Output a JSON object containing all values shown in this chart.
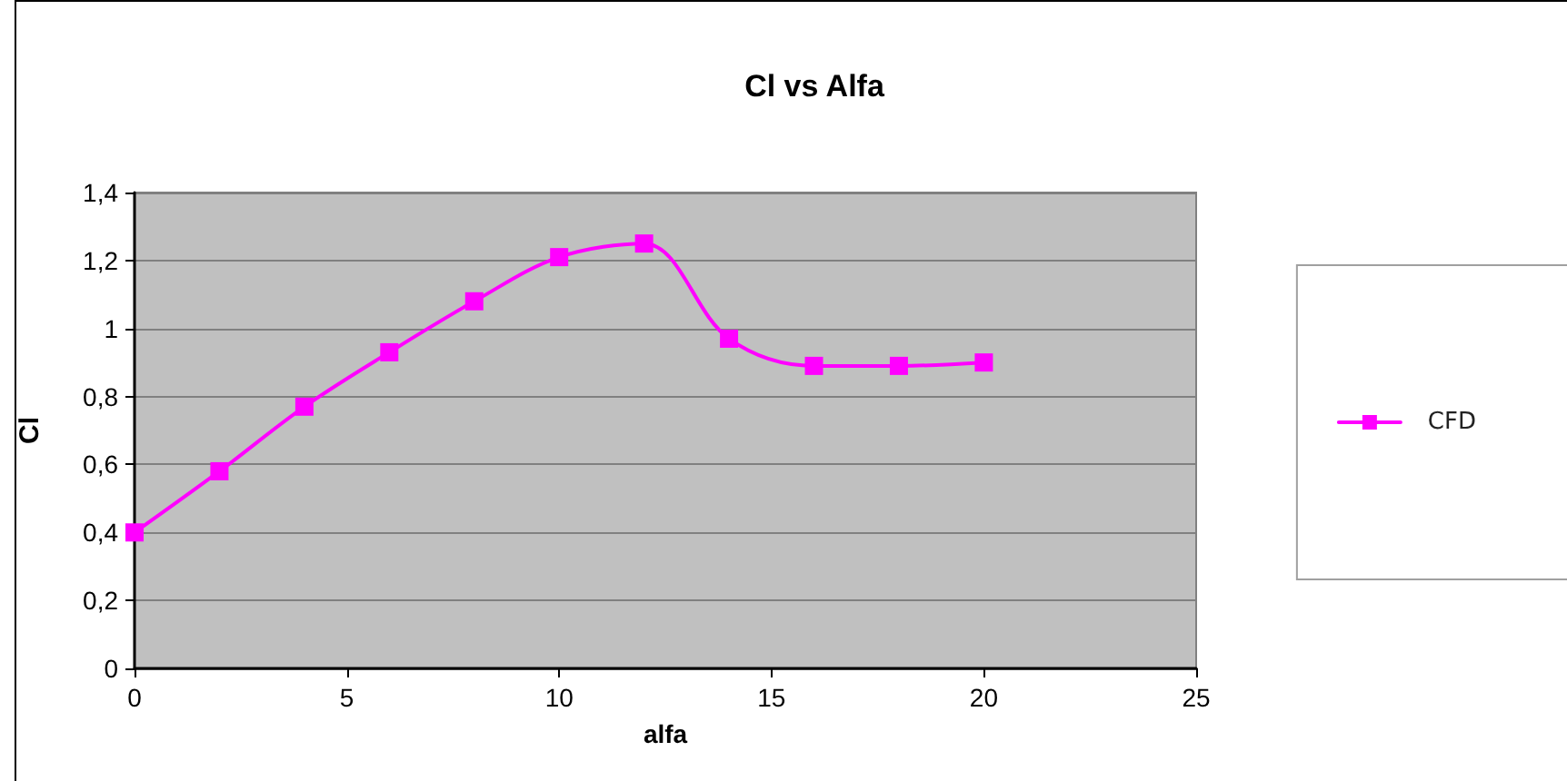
{
  "chart_data": {
    "type": "line",
    "title": "Cl vs Alfa",
    "xlabel": "alfa",
    "ylabel": "Cl",
    "x": [
      0,
      2,
      4,
      6,
      8,
      10,
      12,
      14,
      16,
      18,
      20
    ],
    "series": [
      {
        "name": "CFD",
        "color": "#ff00ff",
        "values": [
          0.4,
          0.58,
          0.77,
          0.93,
          1.08,
          1.21,
          1.25,
          0.97,
          0.89,
          0.89,
          0.9
        ]
      }
    ],
    "xlim": [
      0,
      25
    ],
    "xticks": [
      0,
      5,
      10,
      15,
      20,
      25
    ],
    "ylim": [
      0,
      1.4
    ],
    "yticks": [
      0,
      {
        "value": 0.2,
        "label": "0,2"
      },
      {
        "value": 0.4,
        "label": "0,4"
      },
      {
        "value": 0.6,
        "label": "0,6"
      },
      {
        "value": 0.8,
        "label": "0,8"
      },
      1,
      {
        "value": 1.2,
        "label": "1,2"
      },
      {
        "value": 1.4,
        "label": "1,4"
      }
    ],
    "grid": "y",
    "legend": "right",
    "marker": "square",
    "line_style": "solid"
  }
}
